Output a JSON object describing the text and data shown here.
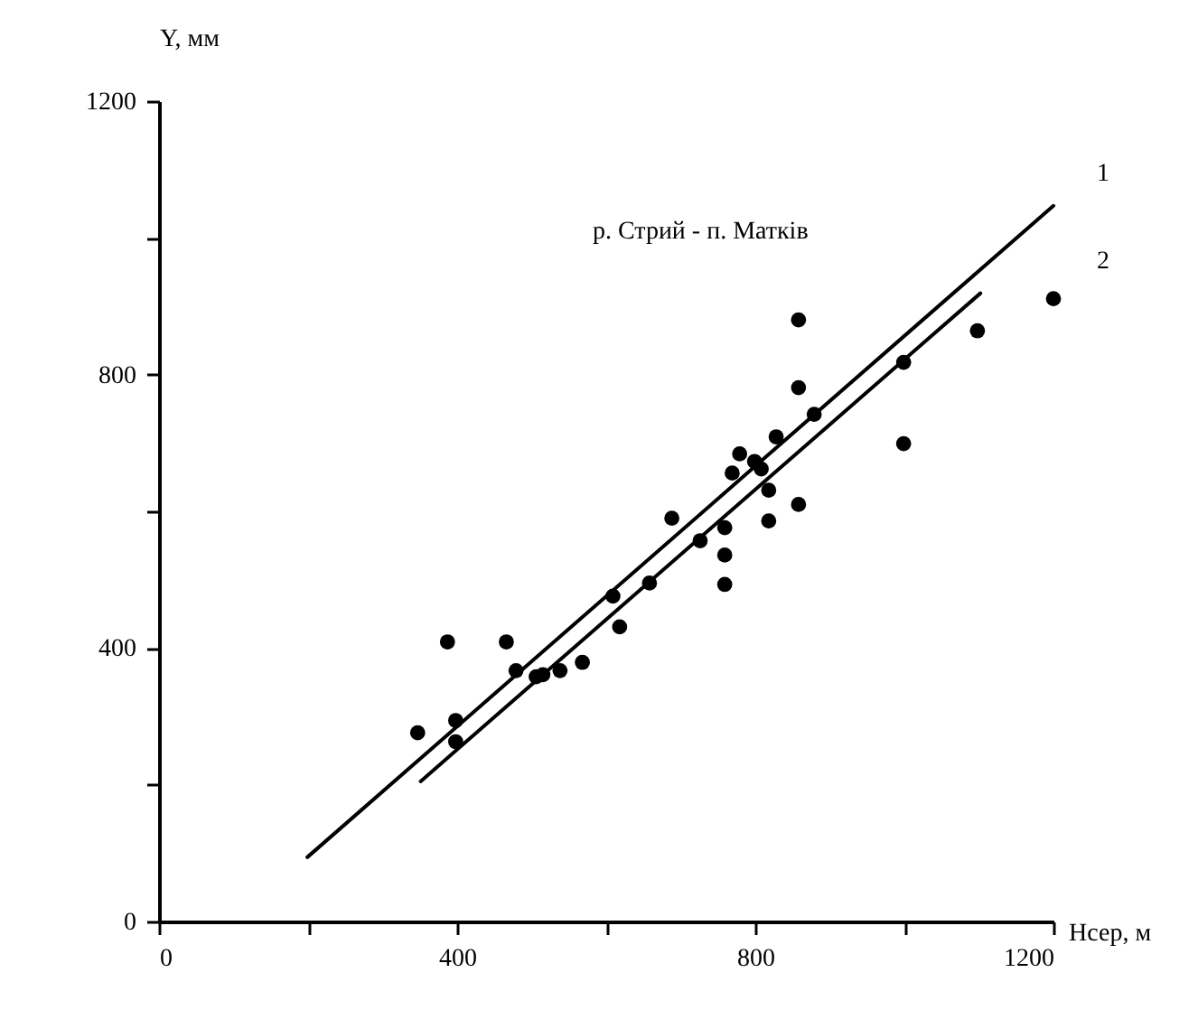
{
  "chart_data": {
    "type": "scatter",
    "xlabel": "Hсер, м",
    "ylabel": "Y, мм",
    "annotations": [
      "р. Стрий - п. Матків"
    ],
    "xlim": [
      0,
      1200
    ],
    "ylim": [
      0,
      1200
    ],
    "xticks": [
      0,
      {
        "value": 200,
        "label": null
      },
      400,
      {
        "value": 600,
        "label": null
      },
      800,
      {
        "value": 1000,
        "label": null
      },
      1200
    ],
    "yticks": [
      0,
      {
        "value": 200,
        "label": null
      },
      400,
      {
        "value": 600,
        "label": null
      },
      800,
      {
        "value": 1000,
        "label": null
      },
      1200
    ],
    "grid": false,
    "series": [
      {
        "marker": "circle",
        "color": "#000000",
        "x": [
          347,
          387,
          398,
          398,
          466,
          479,
          506,
          515,
          538,
          568,
          609,
          618,
          658,
          688,
          726,
          759,
          759,
          759,
          769,
          779,
          799,
          808,
          818,
          818,
          828,
          858,
          858,
          858,
          879,
          999,
          999,
          1098,
          1200
        ],
        "values": [
          276,
          409,
          294,
          263,
          409,
          367,
          358,
          361,
          367,
          379,
          476,
          431,
          495,
          590,
          557,
          576,
          536,
          493,
          656,
          684,
          673,
          662,
          631,
          586,
          709,
          880,
          781,
          610,
          742,
          818,
          699,
          864,
          911
        ]
      },
      {
        "type": "line",
        "name": "1",
        "color": "#000000",
        "line_style": "solid",
        "x": [
          199,
          1200
        ],
        "values": [
          94,
          1047
        ]
      },
      {
        "type": "line",
        "name": "2",
        "color": "#000000",
        "line_style": "solid",
        "x": [
          351,
          1102
        ],
        "values": [
          205,
          919
        ]
      }
    ]
  }
}
